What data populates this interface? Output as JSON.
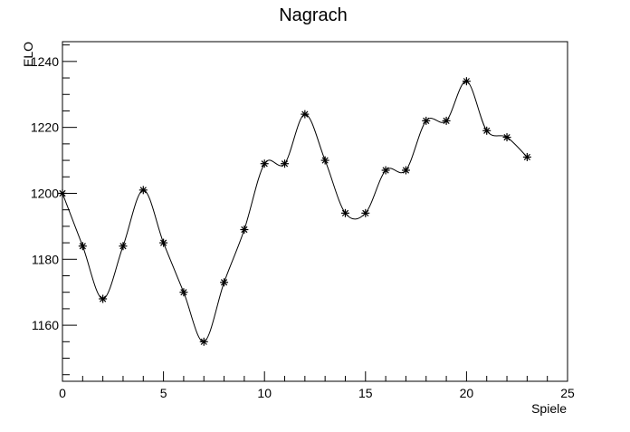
{
  "chart_data": {
    "type": "line",
    "title": "Nagrach",
    "xlabel": "Spiele",
    "ylabel": "ELO",
    "xlim": [
      0,
      25
    ],
    "ylim": [
      1143,
      1246
    ],
    "grid": false,
    "legend": "none",
    "marker": "asterisk",
    "line_style": "smooth",
    "x_ticks": [
      0,
      5,
      10,
      15,
      20,
      25
    ],
    "y_ticks": [
      1160,
      1180,
      1200,
      1220,
      1240
    ],
    "series": [
      {
        "x": [
          0,
          1,
          2,
          3,
          4,
          5,
          6,
          7,
          8,
          9,
          10,
          11,
          12,
          13,
          14,
          15,
          16,
          17,
          18,
          19,
          20,
          21,
          22,
          23
        ],
        "y": [
          1200,
          1184,
          1168,
          1184,
          1201,
          1185,
          1170,
          1155,
          1173,
          1189,
          1209,
          1209,
          1224,
          1210,
          1194,
          1194,
          1207,
          1207,
          1222,
          1222,
          1234,
          1219,
          1217,
          1211
        ]
      }
    ],
    "colors": {
      "line": "#000000",
      "marker": "#000000",
      "axis": "#000000",
      "background": "#ffffff"
    }
  }
}
